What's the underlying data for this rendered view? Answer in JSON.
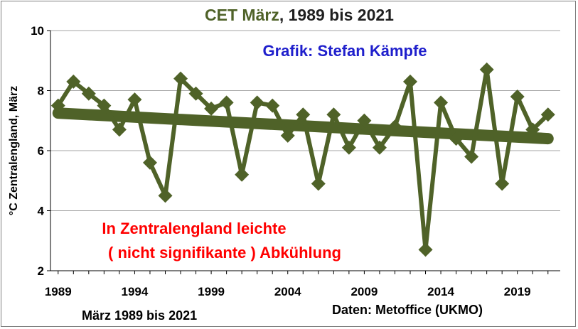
{
  "title": {
    "colored": "CET März",
    "rest": ", 1989 bis 2021"
  },
  "annotations": {
    "credit": "Grafik: Stefan Kämpfe",
    "conclusion_line1": "In Zentralengland leichte",
    "conclusion_line2": "( nicht signifikante ) Abkühlung"
  },
  "footer": {
    "left": "März 1989 bis 2021",
    "right": "Daten: Metoffice (UKMO)"
  },
  "colors": {
    "series": "#4f6228",
    "title_colored": "#4f6228",
    "credit": "#1f1fcc",
    "conclusion": "#ff0000",
    "grid": "#a6a6a6"
  },
  "chart_data": {
    "type": "line",
    "title": "CET März, 1989 bis 2021",
    "xlabel": "",
    "ylabel": "°C Zentralengland, März",
    "xlim": [
      1988.5,
      2021.8
    ],
    "ylim": [
      2,
      10
    ],
    "x_ticks": [
      "1989",
      "1994",
      "1999",
      "2004",
      "2009",
      "2014",
      "2019"
    ],
    "y_ticks": [
      "2",
      "4",
      "6",
      "8",
      "10"
    ],
    "grid": "horizontal",
    "legend": "none",
    "series": [
      {
        "x": [
          1989,
          1990,
          1991,
          1992,
          1993,
          1994,
          1995,
          1996,
          1997,
          1998,
          1999,
          2000,
          2001,
          2002,
          2003,
          2004,
          2005,
          2006,
          2007,
          2008,
          2009,
          2010,
          2011,
          2012,
          2013,
          2014,
          2015,
          2016,
          2017,
          2018,
          2019,
          2020,
          2021
        ],
        "values": [
          7.5,
          8.3,
          7.9,
          7.5,
          6.7,
          7.7,
          5.6,
          4.5,
          8.4,
          7.9,
          7.4,
          7.6,
          5.2,
          7.6,
          7.5,
          6.5,
          7.2,
          4.9,
          7.2,
          6.1,
          7.0,
          6.1,
          6.8,
          8.3,
          2.7,
          7.6,
          6.4,
          5.8,
          8.7,
          4.9,
          7.8,
          6.7,
          7.2
        ]
      },
      {
        "style": "trend",
        "x": [
          1989,
          2021
        ],
        "values": [
          7.25,
          6.4
        ]
      }
    ]
  }
}
